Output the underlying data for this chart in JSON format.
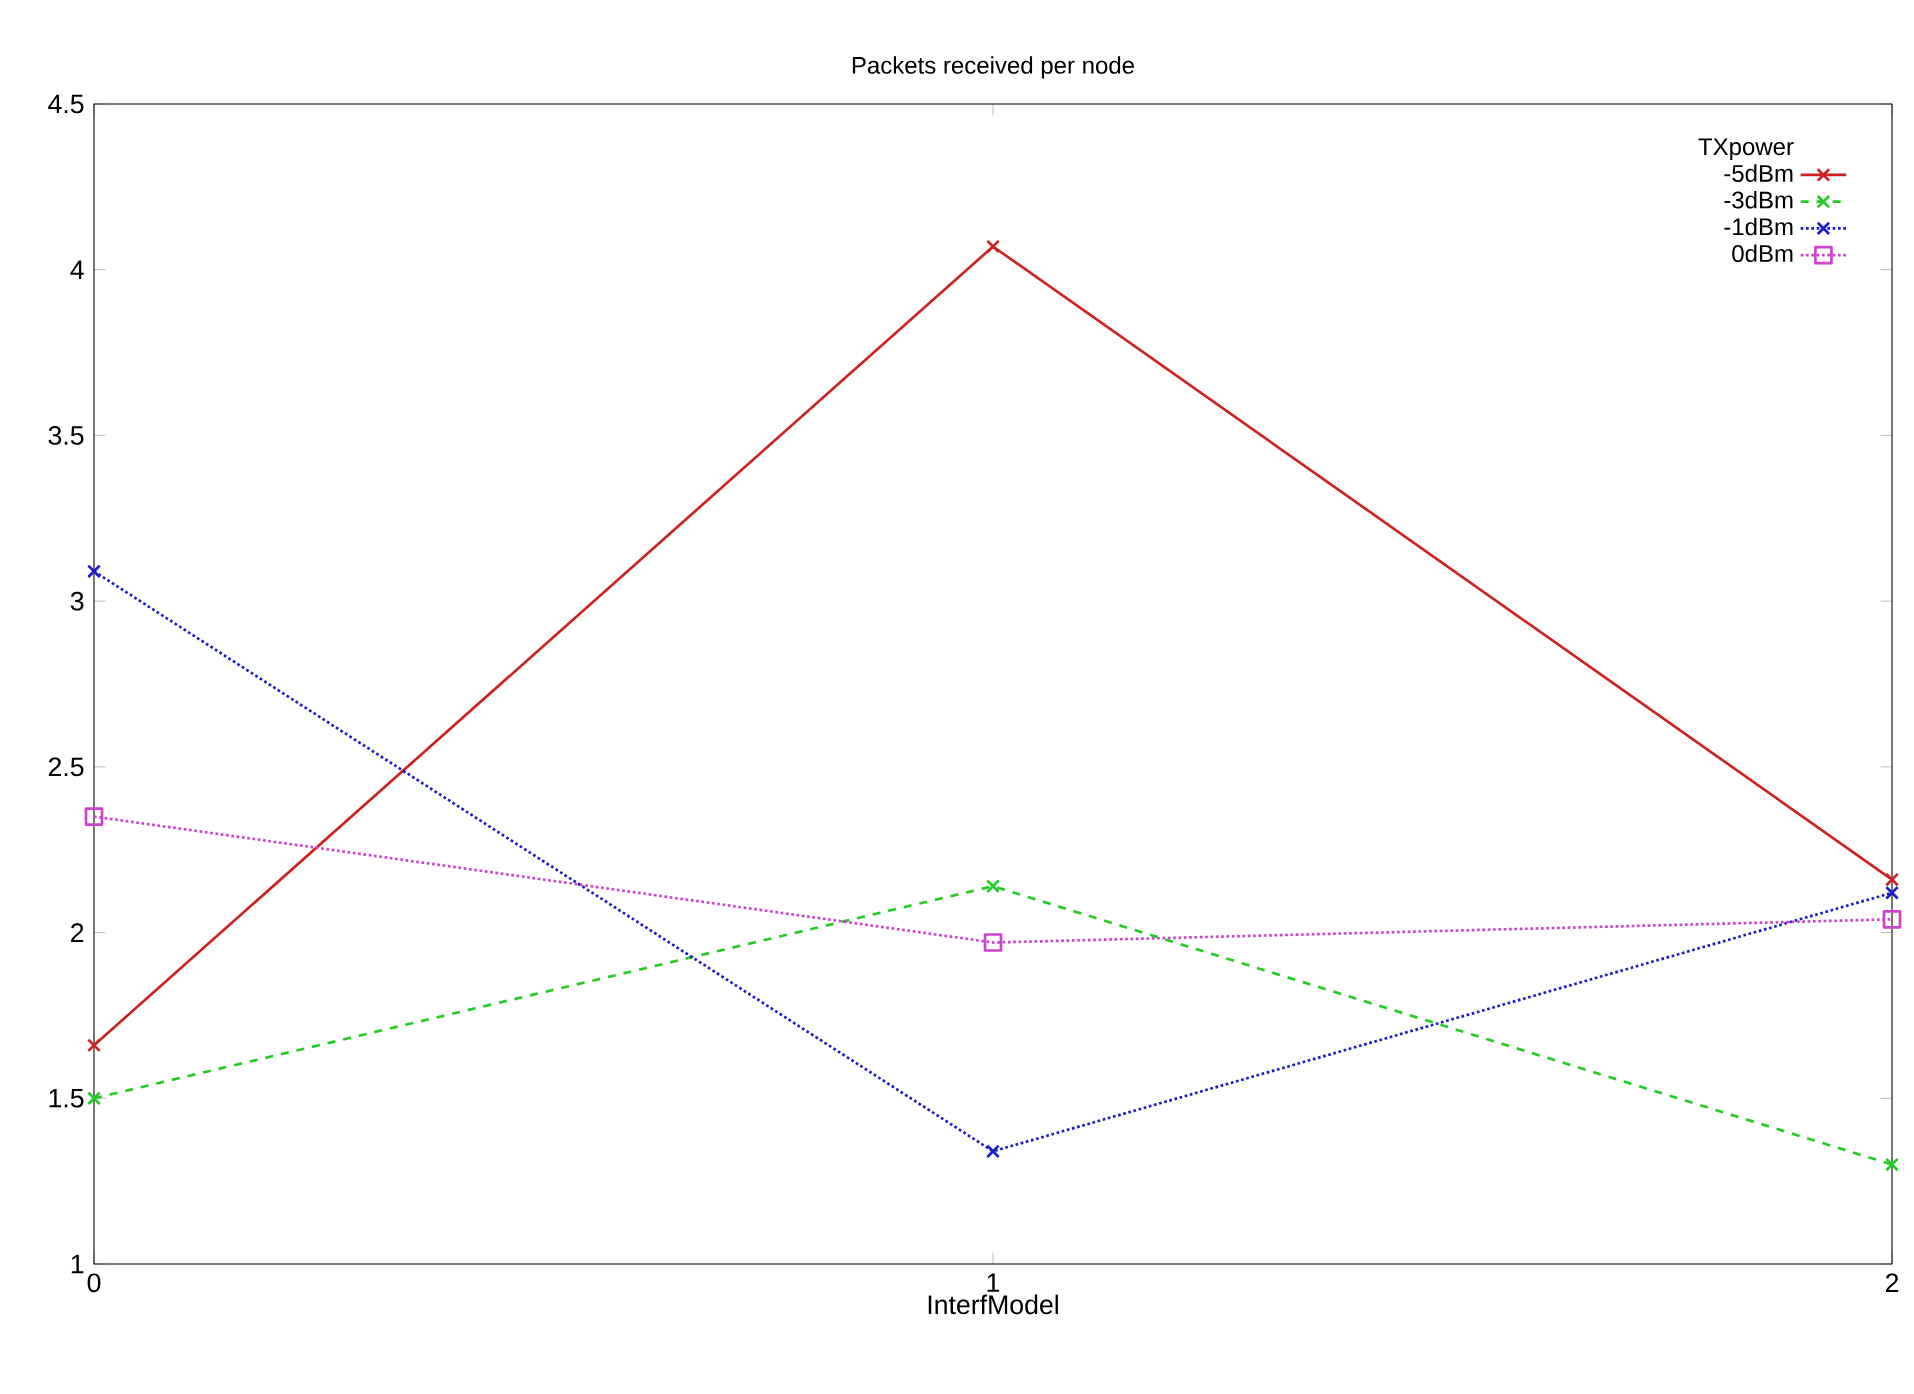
{
  "chart_data": {
    "type": "line",
    "title": "Packets received per node",
    "xlabel": "InterfModel",
    "legend_title": "TXpower",
    "x": [
      0,
      1,
      2
    ],
    "xlim": [
      0,
      2
    ],
    "xticks": [
      0,
      1,
      2
    ],
    "ylim": [
      1,
      4.5
    ],
    "yticks": [
      1,
      1.5,
      2,
      2.5,
      3,
      3.5,
      4,
      4.5
    ],
    "legend": "top right",
    "grid": false,
    "series": [
      {
        "name": "-5dBm",
        "color": "#cc2222",
        "marker": "cross",
        "line_style": "solid",
        "values": [
          1.66,
          4.07,
          2.16
        ]
      },
      {
        "name": "-3dBm",
        "color": "#22cc22",
        "marker": "cross",
        "line_style": "dashed",
        "values": [
          1.5,
          2.14,
          1.3
        ]
      },
      {
        "name": "-1dBm",
        "color": "#1a1acc",
        "marker": "cross",
        "line_style": "dotted",
        "values": [
          3.09,
          1.34,
          2.12
        ]
      },
      {
        "name": "0dBm",
        "color": "#cc44cc",
        "marker": "square",
        "line_style": "dotted",
        "values": [
          2.35,
          1.97,
          2.04
        ]
      }
    ]
  }
}
